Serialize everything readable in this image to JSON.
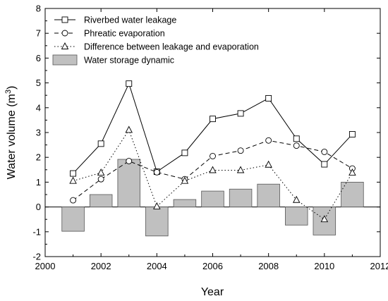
{
  "chart_data": {
    "type": "bar",
    "xlabel": "Year",
    "ylabel_main": "Water volume (m",
    "ylabel_sup": "3",
    "ylabel_close": ")",
    "xlim": [
      2000,
      2012
    ],
    "ylim": [
      -2,
      8
    ],
    "xticks": [
      2000,
      2002,
      2004,
      2006,
      2008,
      2010,
      2012
    ],
    "yticks": [
      -2,
      -1,
      0,
      1,
      2,
      3,
      4,
      5,
      6,
      7,
      8
    ],
    "years": [
      2001,
      2002,
      2003,
      2004,
      2005,
      2006,
      2007,
      2008,
      2009,
      2010,
      2011
    ],
    "legend_position": "top-left",
    "series": [
      {
        "name": "Riverbed water leakage",
        "kind": "line",
        "line_style": "solid",
        "marker": "square",
        "values": [
          1.35,
          2.55,
          4.97,
          1.42,
          2.18,
          3.55,
          3.77,
          4.38,
          2.75,
          1.72,
          2.93
        ]
      },
      {
        "name": "Phreatic evaporation",
        "kind": "line",
        "line_style": "dashed",
        "marker": "circle",
        "values": [
          0.27,
          1.12,
          1.85,
          1.4,
          1.12,
          2.05,
          2.27,
          2.68,
          2.47,
          2.22,
          1.55
        ]
      },
      {
        "name": "Difference between leakage and evaporation",
        "kind": "line",
        "line_style": "dotted",
        "marker": "triangle",
        "values": [
          1.05,
          1.38,
          3.1,
          0.02,
          1.05,
          1.48,
          1.48,
          1.7,
          0.28,
          -0.5,
          1.38
        ]
      },
      {
        "name": "Water storage dynamic",
        "kind": "bar",
        "color": "#c0c0c0",
        "values": [
          -0.98,
          0.5,
          1.92,
          -1.17,
          0.3,
          0.64,
          0.72,
          0.92,
          -0.73,
          -1.13,
          1.0
        ]
      }
    ]
  }
}
